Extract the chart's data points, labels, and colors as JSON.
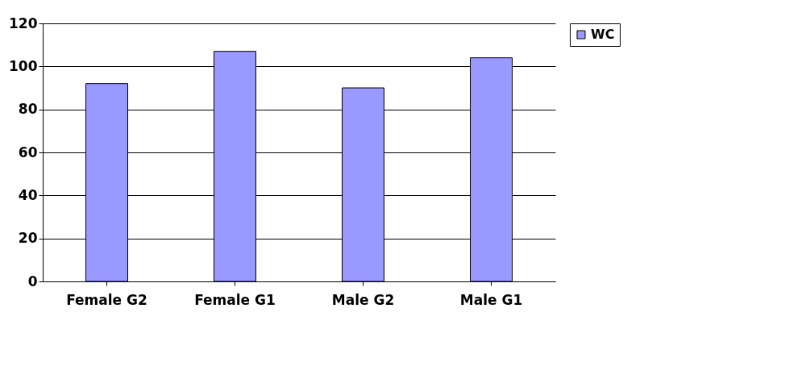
{
  "chart_data": {
    "type": "bar",
    "categories": [
      "Female G2",
      "Female G1",
      "Male G2",
      "Male G1"
    ],
    "series": [
      {
        "name": "WC",
        "color": "#9999ff",
        "values": [
          92,
          107,
          90,
          104
        ]
      }
    ],
    "ylim": [
      0,
      120
    ],
    "yticks": [
      0,
      20,
      40,
      60,
      80,
      100,
      120
    ],
    "grid": "y",
    "legend": "right"
  }
}
